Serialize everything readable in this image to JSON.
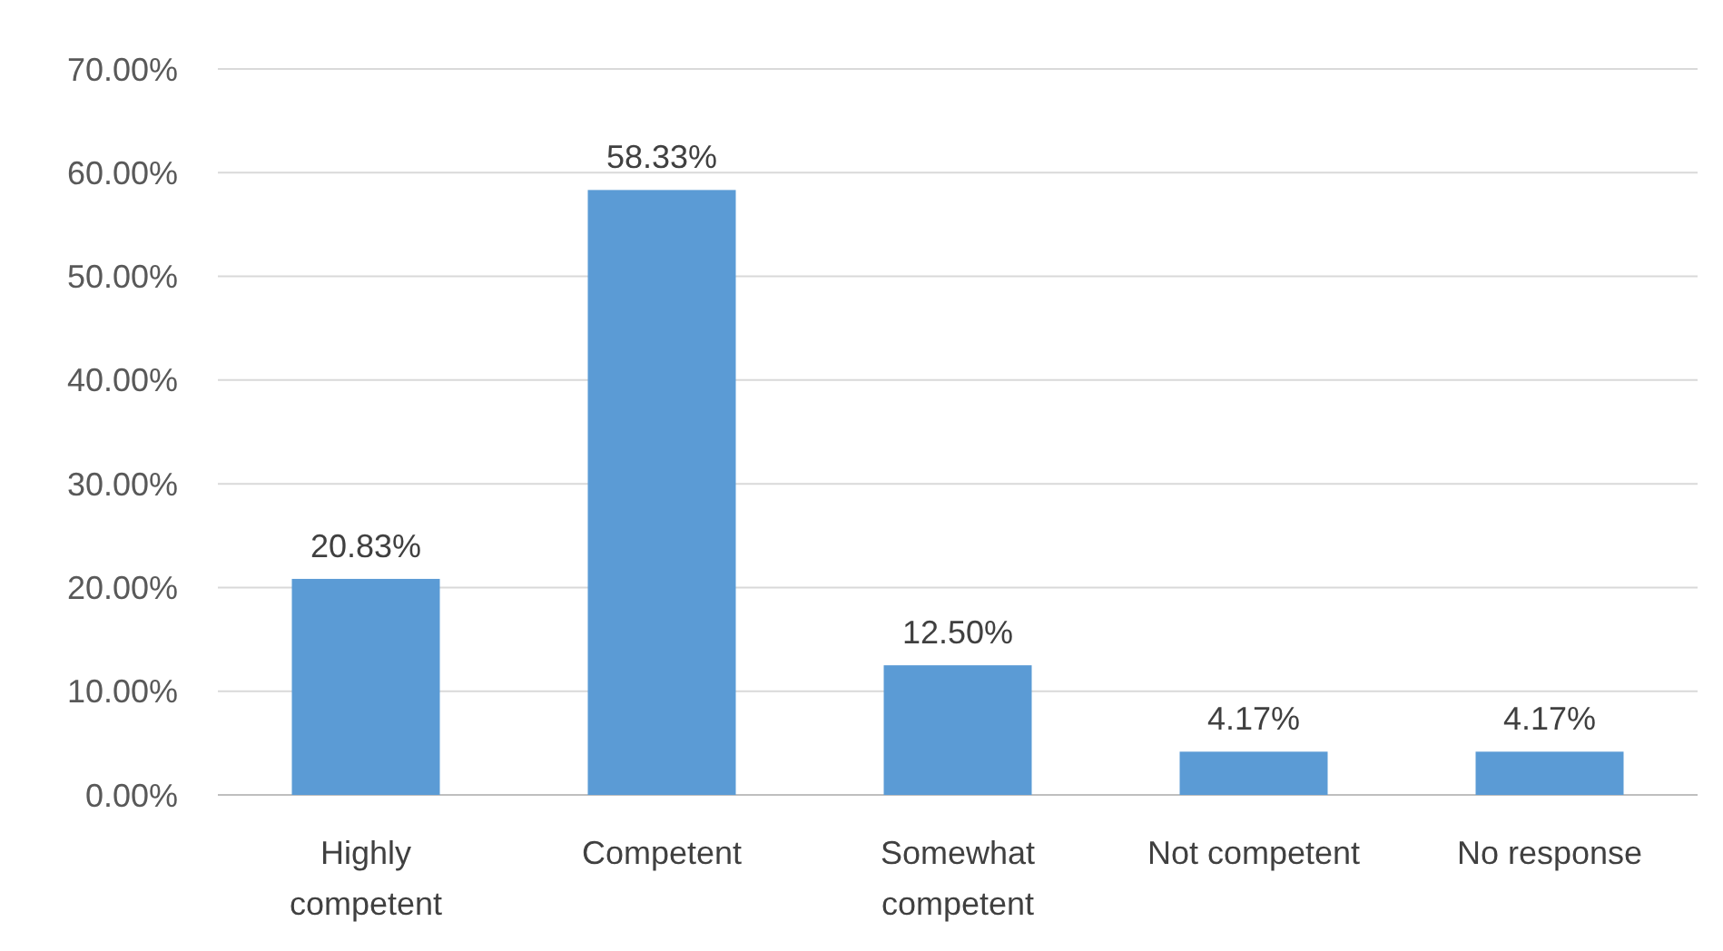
{
  "chart_data": {
    "type": "bar",
    "categories": [
      "Highly competent",
      "Competent",
      "Somewhat competent",
      "Not competent",
      "No response"
    ],
    "values": [
      20.83,
      58.33,
      12.5,
      4.17,
      4.17
    ],
    "value_labels": [
      "20.83%",
      "58.33%",
      "12.50%",
      "4.17%",
      "4.17%"
    ],
    "color": "#5b9bd5",
    "ylim": [
      0,
      70
    ],
    "yticks": [
      {
        "value": 0,
        "label": "0.00%"
      },
      {
        "value": 10,
        "label": "10.00%"
      },
      {
        "value": 20,
        "label": "20.00%"
      },
      {
        "value": 30,
        "label": "30.00%"
      },
      {
        "value": 40,
        "label": "40.00%"
      },
      {
        "value": 50,
        "label": "50.00%"
      },
      {
        "value": 60,
        "label": "60.00%"
      },
      {
        "value": 70,
        "label": "70.00%"
      }
    ],
    "grid": "y"
  }
}
